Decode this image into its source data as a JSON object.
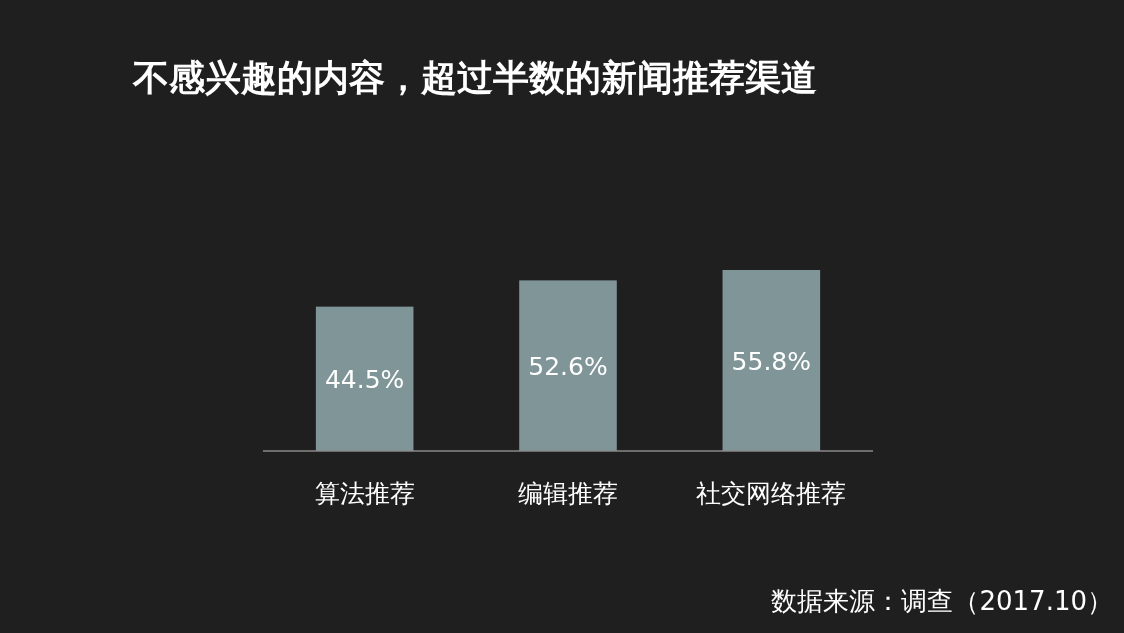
{
  "chart_data": {
    "type": "bar",
    "title": "不感兴趣的内容，超过半数的新闻推荐渠道",
    "categories": [
      "算法推荐",
      "编辑推荐",
      "社交网络推荐"
    ],
    "values": [
      44.5,
      52.6,
      55.8
    ],
    "value_labels": [
      "44.5%",
      "52.6%",
      "55.8%"
    ],
    "color": "#7f9598",
    "annotations": [
      "数据来源：调查（2017.10）"
    ]
  }
}
